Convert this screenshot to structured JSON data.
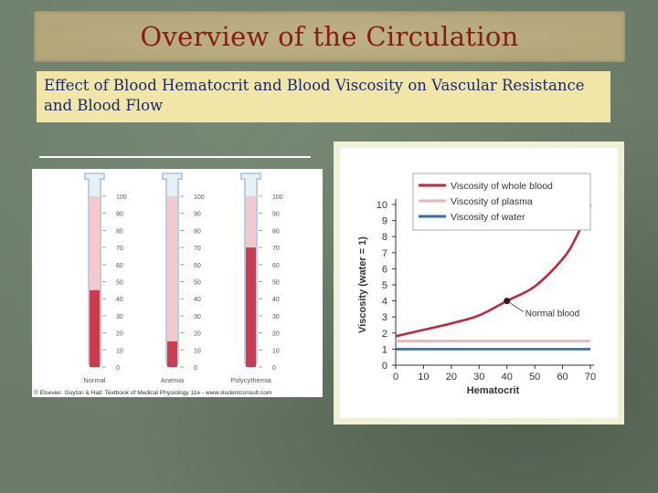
{
  "slide": {
    "title": "Overview of the Circulation",
    "subtitle": "Effect of Blood Hematocrit and Blood Viscosity on Vascular Resistance and Blood Flow"
  },
  "tubes": {
    "scale_labels": [
      "100",
      "90",
      "80",
      "70",
      "60",
      "50",
      "40",
      "30",
      "20",
      "10",
      "0"
    ],
    "items": [
      {
        "label": "Normal",
        "hematocrit": 45,
        "scale_labels": [
          "100",
          "90",
          "80",
          "70",
          "60",
          "50",
          "40",
          "30",
          "20",
          "10",
          "0"
        ]
      },
      {
        "label": "Anemia",
        "hematocrit": 15,
        "scale_labels": [
          "100",
          "90",
          "80",
          "70",
          "60",
          "50",
          "40",
          "30",
          "20",
          "10",
          "0"
        ]
      },
      {
        "label": "Polycythemia",
        "hematocrit": 70,
        "scale_labels": [
          "100",
          "90",
          "80",
          "70",
          "60",
          "50",
          "40",
          "30",
          "20",
          "10",
          "0"
        ]
      }
    ],
    "credit": "© Elsevier. Guyton & Hall: Textbook of Medical Physiology 11e - www.studentconsult.com",
    "colors": {
      "blood": "#cf3b4e",
      "plasma": "#f3c9cc",
      "tube": "#b9cde4"
    }
  },
  "chart_data": {
    "type": "line",
    "xlabel": "Hematocrit",
    "ylabel": "Viscosity (water = 1)",
    "xlim": [
      0,
      70
    ],
    "ylim": [
      0,
      10
    ],
    "x_ticks": [
      0,
      10,
      20,
      30,
      40,
      50,
      60,
      70
    ],
    "y_ticks": [
      0,
      1,
      2,
      3,
      4,
      5,
      6,
      7,
      8,
      9,
      10
    ],
    "legend": "top-right",
    "series": [
      {
        "name": "Viscosity of whole blood",
        "color": "#c0283b",
        "x": [
          0,
          10,
          20,
          30,
          40,
          50,
          60,
          65,
          70
        ],
        "y": [
          1.8,
          2.2,
          2.6,
          3.1,
          4.0,
          4.9,
          6.6,
          8.0,
          10.0
        ]
      },
      {
        "name": "Viscosity of plasma",
        "color": "#e7b6b9",
        "x": [
          0,
          70
        ],
        "y": [
          1.5,
          1.5
        ]
      },
      {
        "name": "Viscosity of water",
        "color": "#2a6fb5",
        "x": [
          0,
          70
        ],
        "y": [
          1.0,
          1.0
        ]
      }
    ],
    "annotation": {
      "label": "Normal blood",
      "x": 40,
      "y": 4.0
    }
  }
}
